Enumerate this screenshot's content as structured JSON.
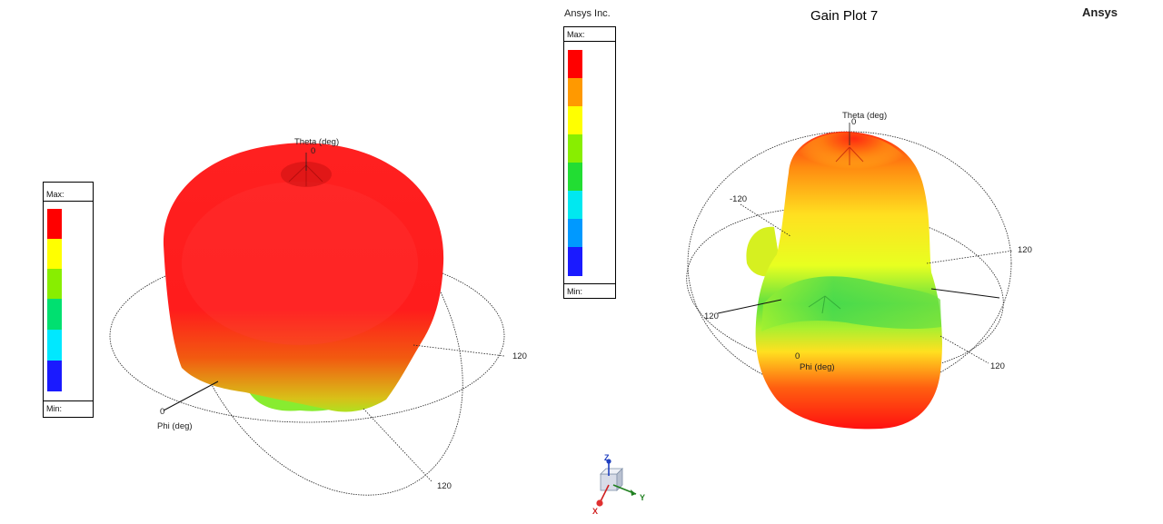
{
  "header": {
    "plot_title": "Gain Plot 7",
    "brand": "Ansys",
    "company": "Ansys Inc."
  },
  "legend_left": {
    "max_label": "Max:",
    "min_label": "Min:",
    "colors": [
      "#ff0000",
      "#ffff00",
      "#88ee00",
      "#00e070",
      "#00e8ff",
      "#1a1aff"
    ]
  },
  "legend_center": {
    "max_label": "Max:",
    "min_label": "Min:",
    "colors": [
      "#ff0000",
      "#ff9900",
      "#ffff00",
      "#88ee00",
      "#22dd33",
      "#00e8f0",
      "#0099ff",
      "#1a1aff"
    ]
  },
  "plot_left": {
    "theta_label": "Theta (deg)",
    "theta_tick": "0",
    "phi_label": "Phi (deg)",
    "phi_tick": "0",
    "tick_120_a": "120",
    "tick_120_b": "120"
  },
  "plot_right": {
    "theta_label": "Theta (deg)",
    "theta_tick": "0",
    "phi_label": "Phi (deg)",
    "phi_tick": "0",
    "tick_neg120": "-120",
    "tick_120_a": "120",
    "tick_120_b": "120",
    "tick_120_c": "120"
  },
  "triad": {
    "x": "X",
    "y": "Y",
    "z": "Z"
  }
}
